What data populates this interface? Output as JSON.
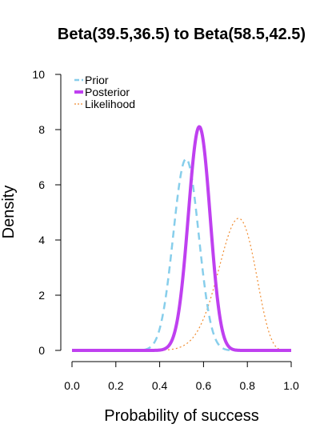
{
  "chart_data": {
    "type": "line",
    "title": "Beta(39.5,36.5) to Beta(58.5,42.5)",
    "xlabel": "Probability of success",
    "ylabel": "Density",
    "xlim": [
      0,
      1
    ],
    "ylim": [
      0,
      10
    ],
    "x_ticks": [
      "0.0",
      "0.2",
      "0.4",
      "0.6",
      "0.8",
      "1.0"
    ],
    "y_ticks": [
      "0",
      "2",
      "4",
      "6",
      "8",
      "10"
    ],
    "legend_position": "top-left",
    "grid": false,
    "series": [
      {
        "name": "Prior",
        "distribution": "beta",
        "alpha": 39.5,
        "beta": 36.5,
        "color": "#87CEEB",
        "line_style": "dashed",
        "line_width": 2.5
      },
      {
        "name": "Posterior",
        "distribution": "beta",
        "alpha": 58.5,
        "beta": 42.5,
        "color": "#BF40F0",
        "line_style": "solid",
        "line_width": 4
      },
      {
        "name": "Likelihood",
        "distribution": "beta",
        "alpha": 20,
        "beta": 7,
        "color": "#F08C30",
        "line_style": "dotted",
        "line_width": 1.2
      }
    ]
  }
}
